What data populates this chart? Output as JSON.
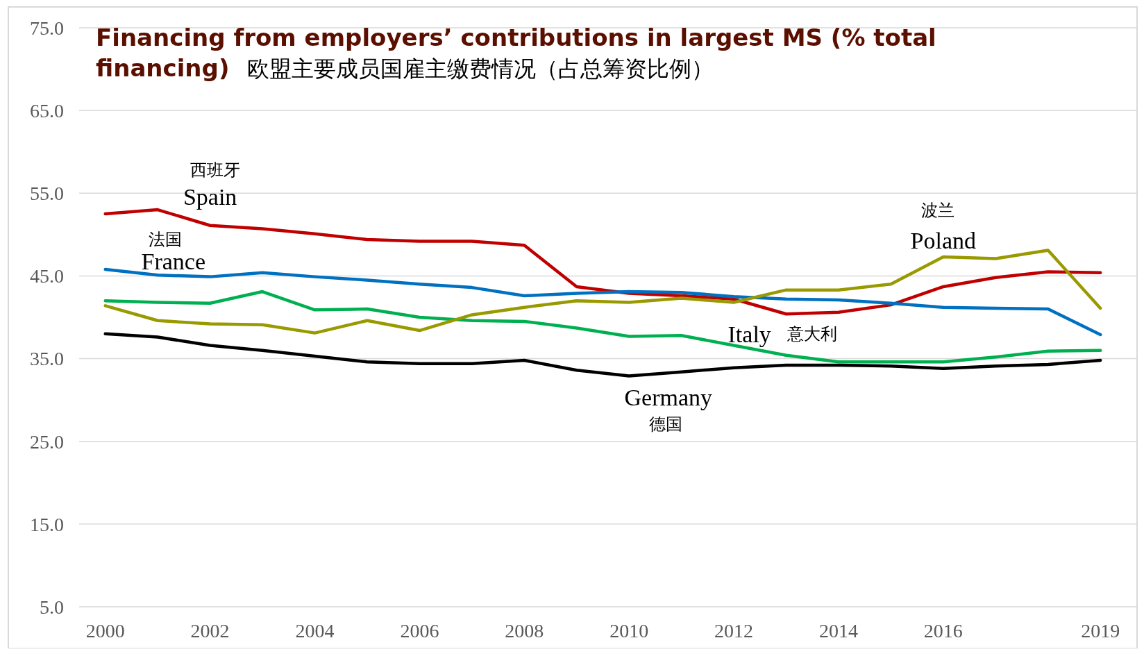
{
  "chart_data": {
    "type": "line",
    "title": "Financing from employers’ contributions in largest MS (% total financing)",
    "subtitle": "欧盟主要成员国雇主缴费情况（占总筹资比例）",
    "x": [
      2000,
      2001,
      2002,
      2003,
      2004,
      2005,
      2006,
      2007,
      2008,
      2009,
      2010,
      2011,
      2012,
      2013,
      2014,
      2015,
      2016,
      2017,
      2018,
      2019
    ],
    "xlim": [
      1999.5,
      2019.7
    ],
    "xticks": [
      2000,
      2002,
      2004,
      2006,
      2008,
      2010,
      2012,
      2014,
      2016,
      2019
    ],
    "ylim": [
      5,
      75
    ],
    "yticks": [
      {
        "value": 5,
        "label": "5.0"
      },
      {
        "value": 15,
        "label": "15.0"
      },
      {
        "value": 25,
        "label": "25.0"
      },
      {
        "value": 35,
        "label": "35.0"
      },
      {
        "value": 45,
        "label": "45.0"
      },
      {
        "value": 55,
        "label": "55.0"
      },
      {
        "value": 65,
        "label": "65.0"
      },
      {
        "value": 75,
        "label": "75.0"
      }
    ],
    "grid": "y",
    "marker": "none",
    "line_style": "solid",
    "series": [
      {
        "name": "Spain",
        "color": "#c00000",
        "values": [
          52.5,
          53.0,
          51.1,
          50.7,
          50.1,
          49.4,
          49.2,
          49.2,
          48.7,
          43.7,
          42.9,
          42.6,
          42.2,
          40.4,
          40.6,
          41.5,
          43.7,
          44.8,
          45.5,
          45.4
        ]
      },
      {
        "name": "France",
        "color": "#0070c0",
        "values": [
          45.8,
          45.1,
          44.9,
          45.4,
          44.9,
          44.5,
          44.0,
          43.6,
          42.6,
          42.9,
          43.1,
          43.0,
          42.5,
          42.2,
          42.1,
          41.7,
          41.2,
          41.1,
          41.0,
          37.9
        ]
      },
      {
        "name": "Italy",
        "color": "#00b050",
        "values": [
          42.0,
          41.8,
          41.7,
          43.1,
          40.9,
          41.0,
          40.0,
          39.6,
          39.5,
          38.7,
          37.7,
          37.8,
          36.6,
          35.4,
          34.6,
          34.6,
          34.6,
          35.2,
          35.9,
          36.0
        ]
      },
      {
        "name": "Poland",
        "color": "#999900",
        "values": [
          41.4,
          39.6,
          39.2,
          39.1,
          38.1,
          39.6,
          38.4,
          40.3,
          41.2,
          42.0,
          41.8,
          42.3,
          41.8,
          43.3,
          43.3,
          44.0,
          47.3,
          47.1,
          48.1,
          41.1
        ]
      },
      {
        "name": "Germany",
        "color": "#000000",
        "values": [
          38.0,
          37.6,
          36.6,
          36.0,
          35.3,
          34.6,
          34.4,
          34.4,
          34.8,
          33.6,
          32.9,
          33.4,
          33.9,
          34.2,
          34.2,
          34.1,
          33.8,
          34.1,
          34.3,
          34.8
        ]
      }
    ],
    "annotations": [
      "西班牙",
      "法国",
      "意大利",
      "波兰",
      "德国"
    ]
  }
}
